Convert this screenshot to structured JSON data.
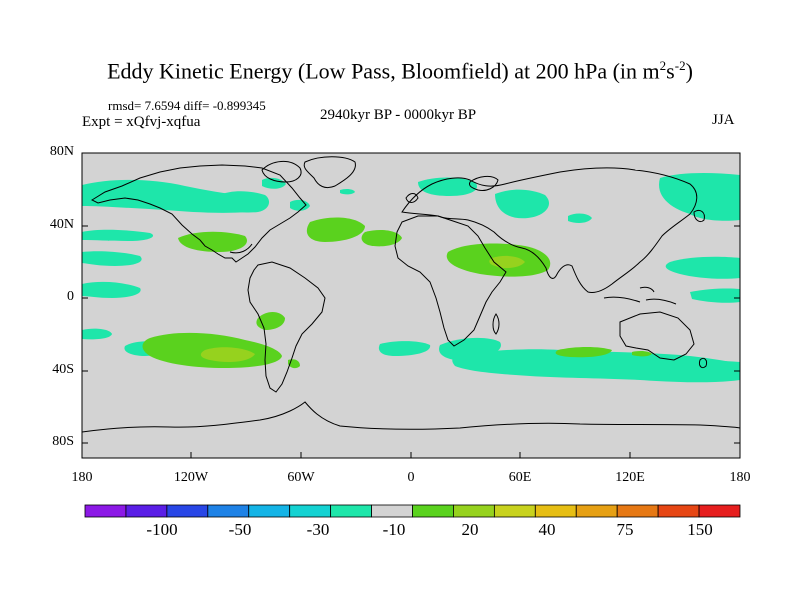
{
  "map": {
    "title_main": "Eddy Kinetic Energy (Low Pass, Bloomfield) at 200 hPa (in m",
    "title_exp1": "2",
    "title_mid": "s",
    "title_exp2": "-2",
    "title_end": ")",
    "stats": "rmsd= 7.6594 diff= -0.899345",
    "experiment": "Expt = xQfvj-xqfua",
    "period": "2940kyr BP - 0000kyr BP",
    "season": "JJA",
    "lat_labels": [
      "80N",
      "40N",
      "0",
      "40S",
      "80S"
    ],
    "lon_labels": [
      "180",
      "120W",
      "60W",
      "0",
      "60E",
      "120E",
      "180"
    ],
    "ocean_color": "#d3d3d3"
  },
  "colorbar": {
    "colors": [
      "#8c19e6",
      "#5a1ee6",
      "#2846e6",
      "#1e82e6",
      "#14b4e6",
      "#14d2d2",
      "#1ee6aa",
      "#d3d3d3",
      "#5ad21e",
      "#96d21e",
      "#c8d21e",
      "#e6be14",
      "#e6a014",
      "#e67814",
      "#e64614",
      "#e61e1e"
    ],
    "labels": [
      "-100",
      "-50",
      "-30",
      "-10",
      "20",
      "40",
      "75",
      "150"
    ]
  }
}
